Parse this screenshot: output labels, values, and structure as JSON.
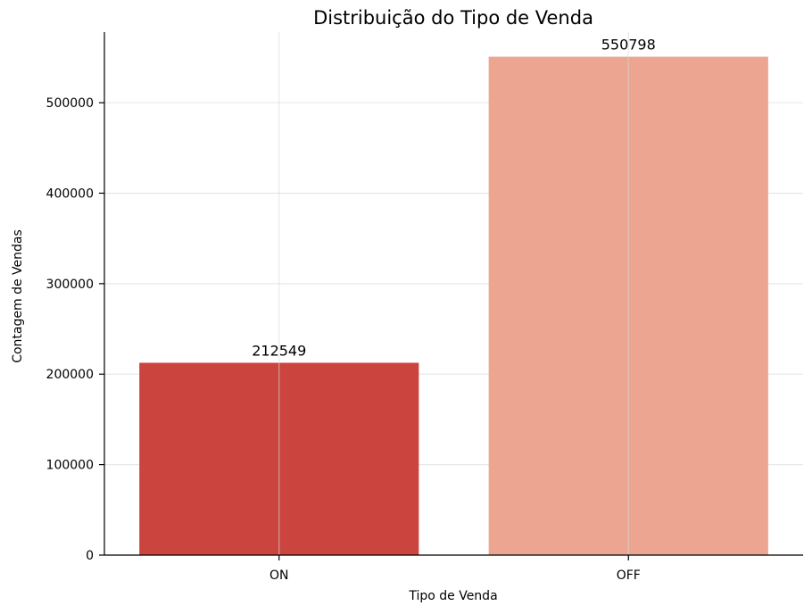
{
  "chart_data": {
    "type": "bar",
    "title": "Distribuição do Tipo de Venda",
    "xlabel": "Tipo de Venda",
    "ylabel": "Contagem de Vendas",
    "categories": [
      "ON",
      "OFF"
    ],
    "values": [
      212549,
      550798
    ],
    "data_labels": [
      "212549",
      "550798"
    ],
    "colors": [
      "#cb443e",
      "#eca590"
    ],
    "ylim": [
      0,
      578000
    ],
    "yticks": [
      0,
      100000,
      200000,
      300000,
      400000,
      500000
    ],
    "ytick_labels": [
      "0",
      "100000",
      "200000",
      "300000",
      "400000",
      "500000"
    ],
    "grid": true,
    "spines": "left-bottom"
  }
}
